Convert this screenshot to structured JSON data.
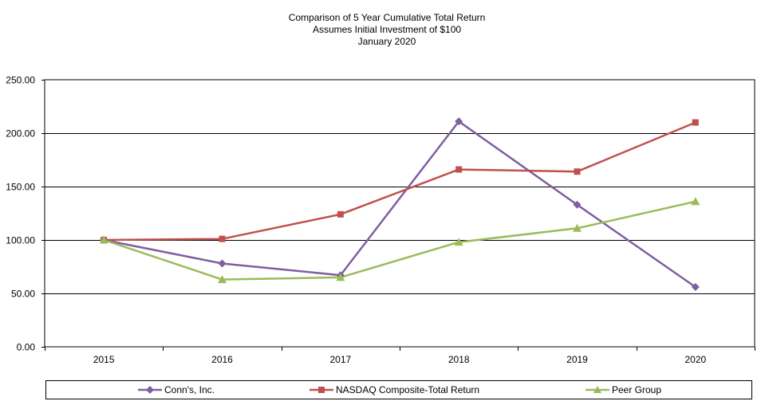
{
  "chart_data": {
    "type": "line",
    "title": "Comparison of 5 Year Cumulative Total Return",
    "subtitle": "Assumes Initial Investment of $100",
    "subtitle2": "January 2020",
    "xlabel": "",
    "ylabel": "",
    "categories": [
      "2015",
      "2016",
      "2017",
      "2018",
      "2019",
      "2020"
    ],
    "ylim": [
      0,
      250
    ],
    "yticks": [
      "0.00",
      "50.00",
      "100.00",
      "150.00",
      "200.00",
      "250.00"
    ],
    "grid": true,
    "legend_position": "bottom",
    "series": [
      {
        "name": "Conn's, Inc.",
        "color": "#7f5fa0",
        "marker": "diamond",
        "values": [
          100,
          78,
          67,
          211,
          133,
          56
        ]
      },
      {
        "name": "NASDAQ Composite-Total Return",
        "color": "#c0504d",
        "marker": "square",
        "values": [
          100,
          101,
          124,
          166,
          164,
          210
        ]
      },
      {
        "name": "Peer Group",
        "color": "#9bbb59",
        "marker": "triangle",
        "values": [
          100,
          63,
          65,
          98,
          111,
          136
        ]
      }
    ]
  }
}
